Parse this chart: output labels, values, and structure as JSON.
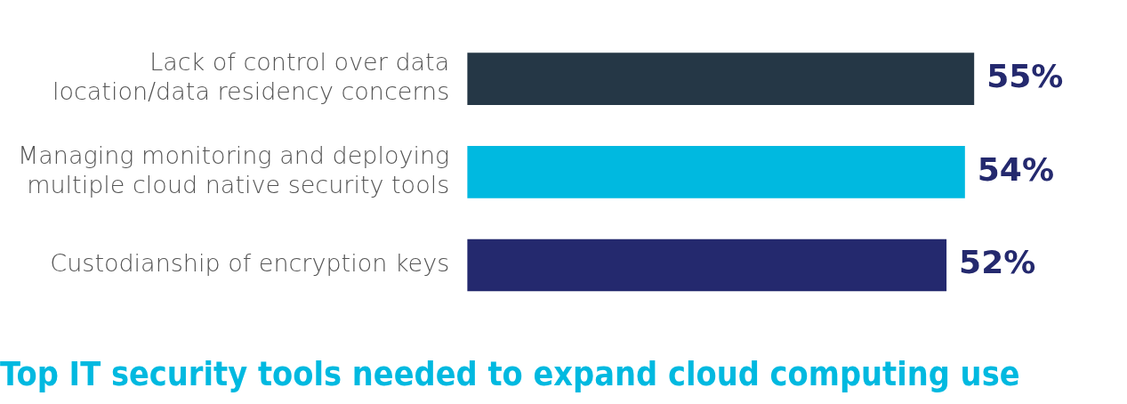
{
  "chart_data": {
    "type": "bar",
    "orientation": "horizontal",
    "title": "Top IT security tools needed to expand cloud computing use",
    "categories": [
      "Lack of control over data location/data residency concerns",
      "Managing monitoring and deploying multiple cloud native security tools",
      "Custodianship of encryption keys"
    ],
    "values": [
      55,
      54,
      52
    ],
    "colors": [
      "#253746",
      "#00b9e0",
      "#24296e"
    ],
    "value_labels": [
      "55%",
      "54%",
      "52%"
    ],
    "legend": false,
    "grid": false
  }
}
